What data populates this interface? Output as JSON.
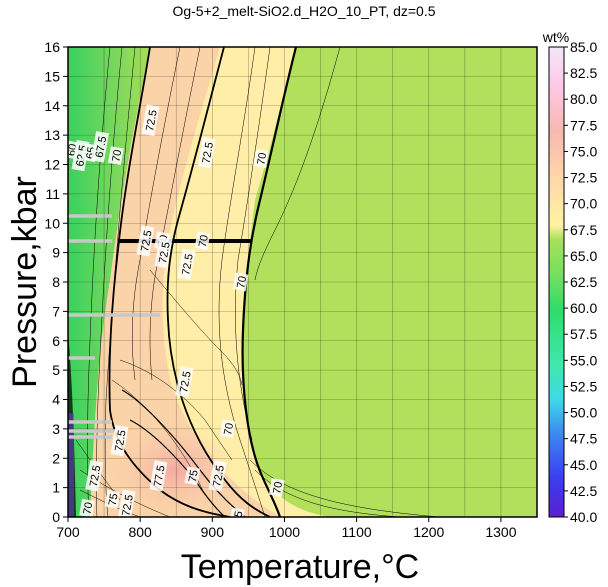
{
  "chart_data": {
    "type": "heatmap",
    "title": "Og-5+2_melt-SiO2.d_H2O_10_PT, dz=0.5",
    "xlabel": "Temperature,°C",
    "ylabel": "Pressure,kbar",
    "xlim": [
      700,
      1350
    ],
    "ylim": [
      0,
      16
    ],
    "x_ticks": [
      700,
      800,
      900,
      1000,
      1100,
      1200,
      1300
    ],
    "y_ticks": [
      0,
      1,
      2,
      3,
      4,
      5,
      6,
      7,
      8,
      9,
      10,
      11,
      12,
      13,
      14,
      15,
      16
    ],
    "grid": true,
    "colorbar": {
      "title": "wt%",
      "min": 40.0,
      "max": 85.0,
      "ticks": [
        "40.0",
        "42.5",
        "45.0",
        "47.5",
        "50.0",
        "52.5",
        "55.0",
        "57.5",
        "60.0",
        "62.5",
        "65.0",
        "67.5",
        "70.0",
        "72.5",
        "75.0",
        "77.5",
        "80.0",
        "82.5",
        "85.0"
      ]
    },
    "contour_labels": [
      {
        "text": "60",
        "x": 705,
        "y": 12.5
      },
      {
        "text": "62.5",
        "x": 718,
        "y": 12.3
      },
      {
        "text": "65",
        "x": 731,
        "y": 12.4
      },
      {
        "text": "67.5",
        "x": 745,
        "y": 12.6
      },
      {
        "text": "70",
        "x": 767,
        "y": 12.3
      },
      {
        "text": "72.5",
        "x": 815,
        "y": 13.5
      },
      {
        "text": "72.5",
        "x": 893,
        "y": 12.4
      },
      {
        "text": "70",
        "x": 968,
        "y": 12.2
      },
      {
        "text": "72.5",
        "x": 808,
        "y": 9.4
      },
      {
        "text": "70",
        "x": 831,
        "y": 9.4
      },
      {
        "text": "70",
        "x": 887,
        "y": 9.4
      },
      {
        "text": "72.5",
        "x": 833,
        "y": 9.0
      },
      {
        "text": "72.5",
        "x": 865,
        "y": 8.6
      },
      {
        "text": "70",
        "x": 940,
        "y": 8.0
      },
      {
        "text": "72.5",
        "x": 862,
        "y": 4.6
      },
      {
        "text": "70",
        "x": 922,
        "y": 3.0
      },
      {
        "text": "72.5",
        "x": 737,
        "y": 1.4
      },
      {
        "text": "72.5",
        "x": 772,
        "y": 2.6
      },
      {
        "text": "75",
        "x": 873,
        "y": 1.4
      },
      {
        "text": "77.5",
        "x": 826,
        "y": 1.4
      },
      {
        "text": "72.5",
        "x": 908,
        "y": 1.4
      },
      {
        "text": "75",
        "x": 762,
        "y": 0.6
      },
      {
        "text": "72.5",
        "x": 782,
        "y": 0.4
      },
      {
        "text": "70",
        "x": 990,
        "y": 1.0
      },
      {
        "text": "70",
        "x": 727,
        "y": 0.3
      },
      {
        "text": "75",
        "x": 935,
        "y": 0.0
      }
    ]
  }
}
